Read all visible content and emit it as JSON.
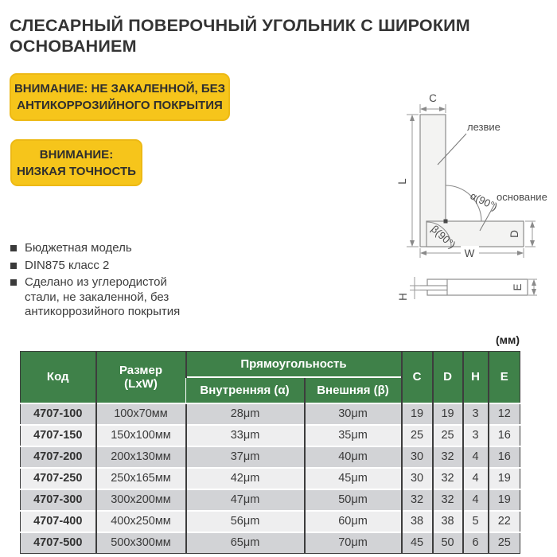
{
  "title": {
    "line1": "СЛЕСАРНЫЙ ПОВЕРОЧНЫЙ УГОЛЬНИК С ШИРОКИМ",
    "line2": "ОСНОВАНИЕМ"
  },
  "warnings": {
    "box1": {
      "line1": "ВНИМАНИЕ: НЕ ЗАКАЛЕННОЙ, БЕЗ",
      "line2": "АНТИКОРРОЗИЙНОГО ПОКРЫТИЯ"
    },
    "box2": {
      "line1": "ВНИМАНИЕ:",
      "line2": "НИЗКАЯ ТОЧНОСТЬ"
    }
  },
  "features": {
    "item1": "Бюджетная модель",
    "item2": "DIN875 класс 2",
    "item3": "Сделано из углеродистой стали, не закаленной, без антикоррозийного покрытия"
  },
  "diagram": {
    "blade_label": "лезвие",
    "base_label": "основание",
    "alpha_label": "α(90°)",
    "beta_label": "β(90°)",
    "dim_c": "C",
    "dim_l": "L",
    "dim_w": "W",
    "dim_d": "D",
    "dim_h": "H",
    "dim_e": "E"
  },
  "units_note": "(мм)",
  "table": {
    "headers": {
      "code": "Код",
      "size_line1": "Размер",
      "size_line2": "(LxW)",
      "squareness": "Прямоугольность",
      "inner": "Внутренняя (α)",
      "outer": "Внешняя (β)",
      "c": "C",
      "d": "D",
      "h": "H",
      "e": "E"
    },
    "row_fields": [
      "code",
      "size",
      "inner",
      "outer",
      "c",
      "d",
      "h",
      "e"
    ],
    "rows": [
      {
        "code": "4707-100",
        "size": "100x70мм",
        "inner": "28μm",
        "outer": "30μm",
        "c": "19",
        "d": "19",
        "h": "3",
        "e": "12"
      },
      {
        "code": "4707-150",
        "size": "150x100мм",
        "inner": "33μm",
        "outer": "35μm",
        "c": "25",
        "d": "25",
        "h": "3",
        "e": "16"
      },
      {
        "code": "4707-200",
        "size": "200x130мм",
        "inner": "37μm",
        "outer": "40μm",
        "c": "30",
        "d": "32",
        "h": "4",
        "e": "16"
      },
      {
        "code": "4707-250",
        "size": "250x165мм",
        "inner": "42μm",
        "outer": "45μm",
        "c": "30",
        "d": "32",
        "h": "4",
        "e": "19"
      },
      {
        "code": "4707-300",
        "size": "300x200мм",
        "inner": "47μm",
        "outer": "50μm",
        "c": "32",
        "d": "32",
        "h": "4",
        "e": "19"
      },
      {
        "code": "4707-400",
        "size": "400x250мм",
        "inner": "56μm",
        "outer": "60μm",
        "c": "38",
        "d": "38",
        "h": "5",
        "e": "22"
      },
      {
        "code": "4707-500",
        "size": "500x300мм",
        "inner": "65μm",
        "outer": "70μm",
        "c": "45",
        "d": "50",
        "h": "6",
        "e": "25"
      }
    ]
  },
  "colors": {
    "header_green": "#3f8149",
    "warning_yellow": "#f6c51b",
    "row_dark": "#d2d3d6",
    "row_light": "#eeeeef",
    "text_dark": "#3a3a3a"
  }
}
